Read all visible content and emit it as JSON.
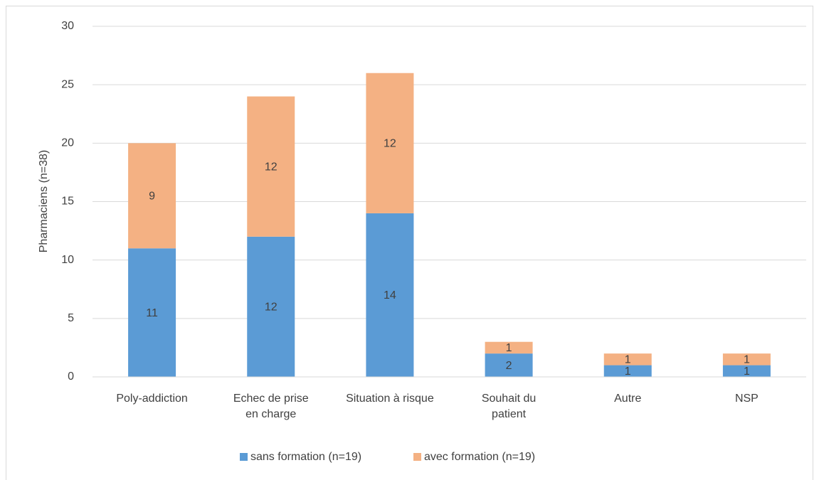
{
  "chart_data": {
    "type": "stacked_bar",
    "y_label": "Pharmaciens (n=38)",
    "categories": [
      "Poly-addiction",
      "Echec de prise en charge",
      "Situation à risque",
      "Souhait du patient",
      "Autre",
      "NSP"
    ],
    "series": [
      {
        "name": "sans formation (n=19)",
        "color": "#5b9bd5",
        "values": [
          11,
          12,
          14,
          2,
          1,
          1
        ]
      },
      {
        "name": "avec formation (n=19)",
        "color": "#f4b183",
        "values": [
          9,
          12,
          12,
          1,
          1,
          1
        ]
      }
    ],
    "ylim": [
      0,
      30
    ],
    "yticks": [
      0,
      5,
      10,
      15,
      20,
      25,
      30
    ],
    "grid": true,
    "legend": "bottom"
  }
}
